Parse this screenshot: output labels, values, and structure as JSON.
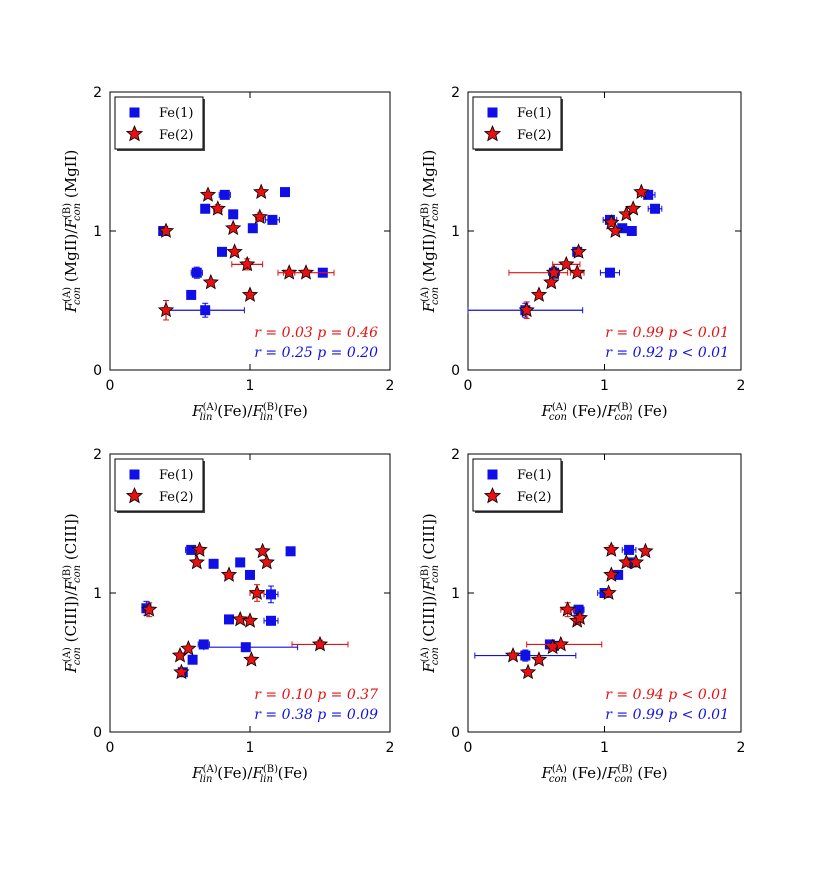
{
  "colors": {
    "fe1": "#1010e6",
    "fe2": "#e81010",
    "fe2_stroke": "#000000"
  },
  "legend": {
    "fe1": "Fe(1)",
    "fe2": "Fe(2)"
  },
  "chart_data": [
    {
      "type": "scatter",
      "xlabel": {
        "main": "F",
        "sup": "(A)",
        "sub": "lin",
        "arg": " (Fe)/",
        "main2": "F",
        "sup2": "(B)",
        "sub2": "lin",
        "arg2": " (Fe)"
      },
      "ylabel": {
        "main": "F",
        "sup": "(A)",
        "sub": "con",
        "arg": " (MgII)/",
        "main2": "F",
        "sup2": "(B)",
        "sub2": "con",
        "arg2": " (MgII)"
      },
      "xlim": [
        0,
        2
      ],
      "ylim": [
        0,
        2
      ],
      "xticks": [
        "0",
        "1",
        "2"
      ],
      "yticks": [
        "0",
        "1",
        "2"
      ],
      "stats": [
        {
          "color": "fe2",
          "text": "r = 0.03   p = 0.46"
        },
        {
          "color": "fe1",
          "text": "r = 0.25   p = 0.20"
        }
      ],
      "series": [
        {
          "name": "Fe(1)",
          "marker": "square",
          "points": [
            {
              "x": 0.38,
              "y": 1.0
            },
            {
              "x": 0.62,
              "y": 0.7,
              "xerr": 0.04,
              "yerr": 0.04
            },
            {
              "x": 0.58,
              "y": 0.54
            },
            {
              "x": 0.68,
              "y": 0.43,
              "xerr_lo": 0.27,
              "xerr_hi": 0.28,
              "yerr": 0.05
            },
            {
              "x": 0.68,
              "y": 1.16,
              "xerr": 0.03,
              "yerr": 0.03
            },
            {
              "x": 0.82,
              "y": 1.26,
              "xerr": 0.04,
              "yerr": 0.02
            },
            {
              "x": 0.8,
              "y": 0.85
            },
            {
              "x": 0.88,
              "y": 1.12
            },
            {
              "x": 1.02,
              "y": 1.02
            },
            {
              "x": 1.16,
              "y": 1.08,
              "xerr": 0.05
            },
            {
              "x": 1.25,
              "y": 1.28
            },
            {
              "x": 1.52,
              "y": 0.7
            }
          ]
        },
        {
          "name": "Fe(2)",
          "marker": "star",
          "points": [
            {
              "x": 0.4,
              "y": 1.0
            },
            {
              "x": 0.4,
              "y": 0.43,
              "yerr": 0.07
            },
            {
              "x": 0.7,
              "y": 1.26,
              "xerr": 0.02
            },
            {
              "x": 0.72,
              "y": 0.63
            },
            {
              "x": 0.77,
              "y": 1.16,
              "xerr": 0.03,
              "yerr": 0.03
            },
            {
              "x": 0.88,
              "y": 1.02
            },
            {
              "x": 0.89,
              "y": 0.85
            },
            {
              "x": 0.98,
              "y": 0.76,
              "xerr": 0.11,
              "yerr": 0.04
            },
            {
              "x": 1.0,
              "y": 0.54
            },
            {
              "x": 1.07,
              "y": 1.1,
              "xerr": 0.03,
              "yerr": 0.03
            },
            {
              "x": 1.08,
              "y": 1.28
            },
            {
              "x": 1.28,
              "y": 0.7,
              "xerr": 0.04
            },
            {
              "x": 1.4,
              "y": 0.7,
              "xerr": 0.2,
              "yerr": 0.02
            }
          ]
        }
      ]
    },
    {
      "type": "scatter",
      "xlabel": {
        "main": "F",
        "sup": "(A)",
        "sub": "con",
        "arg": " (Fe)/",
        "main2": "F",
        "sup2": "(B)",
        "sub2": "con",
        "arg2": " (Fe)"
      },
      "ylabel": {
        "main": "F",
        "sup": "(A)",
        "sub": "con",
        "arg": " (MgII)/",
        "main2": "F",
        "sup2": "(B)",
        "sub2": "con",
        "arg2": " (MgII)"
      },
      "xlim": [
        0,
        2
      ],
      "ylim": [
        0,
        2
      ],
      "xticks": [
        "0",
        "1",
        "2"
      ],
      "yticks": [
        "0",
        "1",
        "2"
      ],
      "stats": [
        {
          "color": "fe2",
          "text": "r = 0.99   p < 0.01"
        },
        {
          "color": "fe1",
          "text": "r = 0.92   p < 0.01"
        }
      ],
      "series": [
        {
          "name": "Fe(1)",
          "marker": "square",
          "points": [
            {
              "x": 0.42,
              "y": 0.43,
              "xerr_lo": 0.42,
              "xerr_hi": 0.42,
              "yerr": 0.05
            },
            {
              "x": 0.63,
              "y": 0.7,
              "xerr": 0.04,
              "yerr": 0.04
            },
            {
              "x": 0.8,
              "y": 0.85
            },
            {
              "x": 1.04,
              "y": 0.7,
              "xerr": 0.07
            },
            {
              "x": 1.04,
              "y": 1.08,
              "xerr": 0.05
            },
            {
              "x": 1.13,
              "y": 1.02
            },
            {
              "x": 1.2,
              "y": 1.0
            },
            {
              "x": 1.32,
              "y": 1.26,
              "xerr": 0.05
            },
            {
              "x": 1.37,
              "y": 1.16,
              "xerr": 0.05
            }
          ]
        },
        {
          "name": "Fe(2)",
          "marker": "star",
          "points": [
            {
              "x": 0.43,
              "y": 0.43,
              "xerr": 0.02,
              "yerr": 0.06
            },
            {
              "x": 0.52,
              "y": 0.54
            },
            {
              "x": 0.61,
              "y": 0.63
            },
            {
              "x": 0.63,
              "y": 0.7,
              "xerr_lo": 0.33,
              "xerr_hi": 0.1
            },
            {
              "x": 0.72,
              "y": 0.76,
              "xerr": 0.1
            },
            {
              "x": 0.8,
              "y": 0.7,
              "xerr": 0.05
            },
            {
              "x": 0.81,
              "y": 0.85
            },
            {
              "x": 1.05,
              "y": 1.06
            },
            {
              "x": 1.08,
              "y": 1.0
            },
            {
              "x": 1.16,
              "y": 1.12
            },
            {
              "x": 1.21,
              "y": 1.16,
              "xerr": 0.02
            },
            {
              "x": 1.27,
              "y": 1.28,
              "xerr": 0.03
            }
          ]
        }
      ]
    },
    {
      "type": "scatter",
      "xlabel": {
        "main": "F",
        "sup": "(A)",
        "sub": "lin",
        "arg": " (Fe)/",
        "main2": "F",
        "sup2": "(B)",
        "sub2": "lin",
        "arg2": " (Fe)"
      },
      "ylabel": {
        "main": "F",
        "sup": "(A)",
        "sub": "con",
        "arg": " (CIII])/",
        "main2": "F",
        "sup2": "(B)",
        "sub2": "con",
        "arg2": " (CIII])"
      },
      "xlim": [
        0,
        2
      ],
      "ylim": [
        0,
        2
      ],
      "xticks": [
        "0",
        "1",
        "2"
      ],
      "yticks": [
        "0",
        "1",
        "2"
      ],
      "stats": [
        {
          "color": "fe2",
          "text": "r = 0.10   p = 0.37"
        },
        {
          "color": "fe1",
          "text": "r = 0.38   p = 0.09"
        }
      ],
      "series": [
        {
          "name": "Fe(1)",
          "marker": "square",
          "points": [
            {
              "x": 0.26,
              "y": 0.89,
              "xerr": 0.02,
              "yerr": 0.05
            },
            {
              "x": 0.52,
              "y": 0.43
            },
            {
              "x": 0.59,
              "y": 0.52
            },
            {
              "x": 0.58,
              "y": 1.31,
              "xerr": 0.04,
              "yerr": 0.02
            },
            {
              "x": 0.67,
              "y": 0.63,
              "xerr": 0.04,
              "yerr": 0.03
            },
            {
              "x": 0.74,
              "y": 1.21
            },
            {
              "x": 0.85,
              "y": 0.81
            },
            {
              "x": 0.93,
              "y": 1.22
            },
            {
              "x": 0.97,
              "y": 0.61,
              "xerr_lo": 0.3,
              "xerr_hi": 0.37,
              "yerr": 0.03
            },
            {
              "x": 1.0,
              "y": 1.13,
              "xerr": 0.03
            },
            {
              "x": 1.15,
              "y": 0.99,
              "xerr": 0.05,
              "yerr": 0.06
            },
            {
              "x": 1.15,
              "y": 0.8,
              "xerr": 0.05
            },
            {
              "x": 1.29,
              "y": 1.3
            }
          ]
        },
        {
          "name": "Fe(2)",
          "marker": "star",
          "points": [
            {
              "x": 0.28,
              "y": 0.88,
              "yerr": 0.05
            },
            {
              "x": 0.5,
              "y": 0.55
            },
            {
              "x": 0.51,
              "y": 0.43
            },
            {
              "x": 0.56,
              "y": 0.6
            },
            {
              "x": 0.62,
              "y": 1.22
            },
            {
              "x": 0.64,
              "y": 1.31,
              "xerr": 0.03,
              "yerr": 0.02
            },
            {
              "x": 0.85,
              "y": 1.13,
              "xerr": 0.03
            },
            {
              "x": 0.93,
              "y": 0.81
            },
            {
              "x": 1.0,
              "y": 0.8
            },
            {
              "x": 1.01,
              "y": 0.52
            },
            {
              "x": 1.05,
              "y": 1.0,
              "xerr": 0.05,
              "yerr": 0.06
            },
            {
              "x": 1.09,
              "y": 1.3
            },
            {
              "x": 1.12,
              "y": 1.22
            },
            {
              "x": 1.5,
              "y": 0.63,
              "xerr_lo": 0.2,
              "xerr_hi": 0.2,
              "yerr": 0.03
            }
          ]
        }
      ]
    },
    {
      "type": "scatter",
      "xlabel": {
        "main": "F",
        "sup": "(A)",
        "sub": "con",
        "arg": " (Fe)/",
        "main2": "F",
        "sup2": "(B)",
        "sub2": "con",
        "arg2": " (Fe)"
      },
      "ylabel": {
        "main": "F",
        "sup": "(A)",
        "sub": "con",
        "arg": " (CIII])/",
        "main2": "F",
        "sup2": "(B)",
        "sub2": "con",
        "arg2": " (CIII])"
      },
      "xlim": [
        0,
        2
      ],
      "ylim": [
        0,
        2
      ],
      "xticks": [
        "0",
        "1",
        "2"
      ],
      "yticks": [
        "0",
        "1",
        "2"
      ],
      "stats": [
        {
          "color": "fe2",
          "text": "r = 0.94   p < 0.01"
        },
        {
          "color": "fe1",
          "text": "r = 0.99   p < 0.01"
        }
      ],
      "series": [
        {
          "name": "Fe(1)",
          "marker": "square",
          "points": [
            {
              "x": 0.42,
              "y": 0.55,
              "xerr_lo": 0.37,
              "xerr_hi": 0.37,
              "yerr": 0.04
            },
            {
              "x": 0.6,
              "y": 0.63
            },
            {
              "x": 0.63,
              "y": 0.62
            },
            {
              "x": 0.81,
              "y": 0.88,
              "xerr": 0.04,
              "yerr": 0.03
            },
            {
              "x": 1.0,
              "y": 1.0,
              "xerr": 0.05
            },
            {
              "x": 1.1,
              "y": 1.13
            },
            {
              "x": 1.18,
              "y": 1.31,
              "xerr": 0.05
            },
            {
              "x": 1.2,
              "y": 1.22,
              "xerr": 0.05
            }
          ]
        },
        {
          "name": "Fe(2)",
          "marker": "star",
          "points": [
            {
              "x": 0.33,
              "y": 0.55
            },
            {
              "x": 0.44,
              "y": 0.43
            },
            {
              "x": 0.52,
              "y": 0.52
            },
            {
              "x": 0.62,
              "y": 0.61
            },
            {
              "x": 0.68,
              "y": 0.63,
              "xerr_lo": 0.25,
              "xerr_hi": 0.3
            },
            {
              "x": 0.73,
              "y": 0.88,
              "xerr": 0.05,
              "yerr": 0.05
            },
            {
              "x": 0.8,
              "y": 0.8
            },
            {
              "x": 0.82,
              "y": 0.82
            },
            {
              "x": 1.03,
              "y": 1.0,
              "xerr": 0.02
            },
            {
              "x": 1.05,
              "y": 1.13,
              "xerr": 0.02
            },
            {
              "x": 1.05,
              "y": 1.31,
              "xerr": 0.02,
              "yerr": 0.03
            },
            {
              "x": 1.16,
              "y": 1.22
            },
            {
              "x": 1.23,
              "y": 1.22
            },
            {
              "x": 1.3,
              "y": 1.3
            }
          ]
        }
      ]
    }
  ]
}
